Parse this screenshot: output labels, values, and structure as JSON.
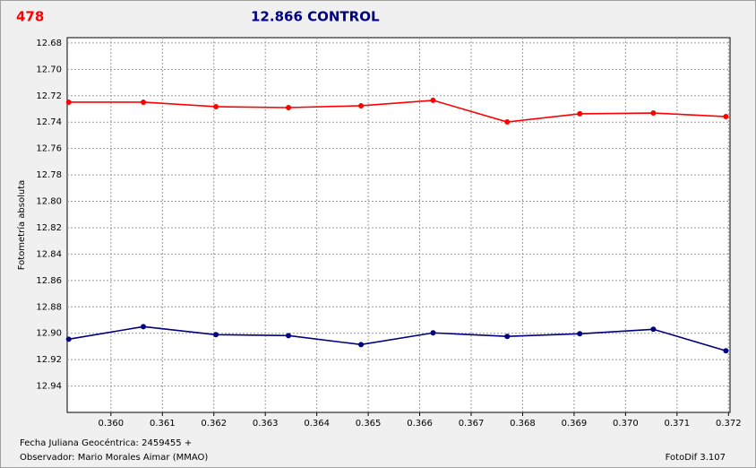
{
  "chart_data": {
    "type": "line",
    "label": "478",
    "title": "12.866 CONTROL",
    "y_label": "Fotometría absoluta",
    "footer_date": "Fecha Juliana Geocéntrica: 2459455 +",
    "footer_observer": "Observador: Mario Morales Aimar (MMAO)",
    "footer_software": "FotoDif 3.107",
    "x": [
      0.35918,
      0.36063,
      0.36204,
      0.36345,
      0.36486,
      0.36626,
      0.3677,
      0.36911,
      0.37054,
      0.37195
    ],
    "series": [
      {
        "color": "#ff0000",
        "values": [
          12.7249,
          12.7249,
          12.7283,
          12.729,
          12.7276,
          12.7235,
          12.7399,
          12.7337,
          12.7331,
          12.7358
        ]
      },
      {
        "color": "#000080",
        "values": [
          12.9045,
          12.895,
          12.9011,
          12.9018,
          12.9086,
          12.8997,
          12.9024,
          12.9004,
          12.897,
          12.9133
        ]
      }
    ],
    "xlim": [
      0.35915,
      0.37203
    ],
    "xticks": [
      {
        "value": 0.36,
        "label": "0.360"
      },
      0.361,
      0.362,
      0.363,
      0.364,
      0.365,
      0.366,
      0.367,
      0.368,
      0.369,
      {
        "value": 0.37,
        "label": "0.370"
      },
      0.371,
      0.372
    ],
    "ylim": [
      12.96,
      12.676
    ],
    "yticks": [
      12.68,
      {
        "value": 12.7,
        "label": "12.70"
      },
      12.72,
      12.74,
      12.76,
      12.78,
      {
        "value": 12.8,
        "label": "12.80"
      },
      12.82,
      12.84,
      12.86,
      12.88,
      {
        "value": 12.9,
        "label": "12.90"
      },
      12.92,
      12.94
    ],
    "grid": true
  }
}
